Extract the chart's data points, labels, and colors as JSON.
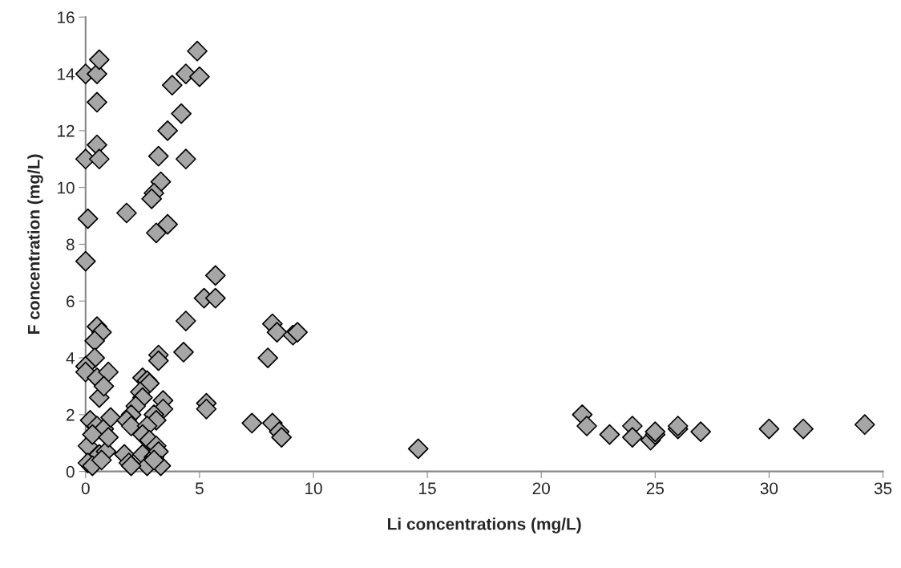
{
  "chart_data": {
    "type": "scatter",
    "xlabel": "Li concentrations (mg/L)",
    "ylabel": "F concentration (mg/L)",
    "xlim": [
      0,
      35
    ],
    "xticks": [
      0,
      5,
      10,
      15,
      20,
      25,
      30,
      35
    ],
    "ylim": [
      0,
      16
    ],
    "yticks": [
      0,
      2,
      4,
      6,
      8,
      10,
      12,
      14,
      16
    ],
    "grid": false,
    "marker": "diamond",
    "series": [
      {
        "color": "#a6a6a6",
        "x": [
          0.0,
          0.5,
          0.6,
          0.5,
          0.5,
          0.0,
          0.6,
          0.1,
          0.0,
          4.9,
          4.4,
          5.0,
          3.8,
          4.2,
          3.6,
          3.2,
          4.4,
          3.3,
          3.0,
          2.9,
          1.8,
          3.6,
          3.1,
          5.7,
          5.2,
          5.7,
          4.4,
          4.3,
          3.2,
          3.2,
          8.2,
          8.4,
          9.1,
          9.3,
          8.0,
          7.3,
          8.2,
          8.5,
          8.6,
          5.3,
          5.3,
          14.6,
          21.8,
          22.0,
          23.0,
          24.0,
          24.0,
          24.8,
          25.0,
          25.0,
          26.0,
          26.0,
          27.0,
          30.0,
          31.5,
          34.2,
          0.5,
          0.7,
          0.4,
          0.4,
          0.0,
          0.0,
          0.5,
          1.0,
          0.6,
          0.8,
          0.2,
          0.5,
          0.8,
          1.1,
          0.1,
          0.3,
          0.6,
          0.9,
          1.0,
          0.1,
          0.3,
          0.7,
          2.5,
          2.7,
          2.8,
          2.4,
          2.5,
          2.2,
          2.0,
          1.8,
          2.0,
          3.4,
          3.4,
          3.0,
          3.1,
          2.7,
          2.5,
          2.8,
          3.1,
          1.7,
          2.5,
          3.0,
          3.2,
          1.9,
          2.7,
          3.3,
          2.0,
          3.0
        ],
        "values": [
          14.0,
          14.0,
          14.5,
          13.0,
          11.5,
          11.0,
          11.0,
          8.9,
          7.4,
          14.8,
          14.0,
          13.9,
          13.6,
          12.6,
          12.0,
          11.1,
          11.0,
          10.2,
          9.8,
          9.6,
          9.1,
          8.7,
          8.4,
          6.9,
          6.1,
          6.1,
          5.3,
          4.2,
          4.1,
          3.9,
          5.2,
          4.9,
          4.8,
          4.9,
          4.0,
          1.7,
          1.7,
          1.4,
          1.2,
          2.4,
          2.2,
          0.8,
          2.0,
          1.6,
          1.3,
          1.6,
          1.2,
          1.1,
          1.3,
          1.4,
          1.5,
          1.6,
          1.4,
          1.5,
          1.5,
          1.65,
          5.1,
          4.9,
          4.6,
          4.0,
          3.7,
          3.5,
          3.3,
          3.5,
          2.6,
          3.0,
          1.8,
          1.6,
          1.5,
          1.9,
          0.9,
          1.3,
          0.6,
          0.7,
          1.2,
          0.3,
          0.2,
          0.4,
          3.3,
          3.2,
          3.1,
          2.8,
          2.6,
          2.3,
          2.0,
          1.8,
          1.6,
          2.5,
          2.2,
          2.0,
          1.8,
          1.6,
          1.3,
          1.1,
          0.9,
          0.6,
          0.6,
          0.5,
          0.7,
          0.3,
          0.2,
          0.2,
          0.2,
          0.4
        ]
      }
    ]
  }
}
